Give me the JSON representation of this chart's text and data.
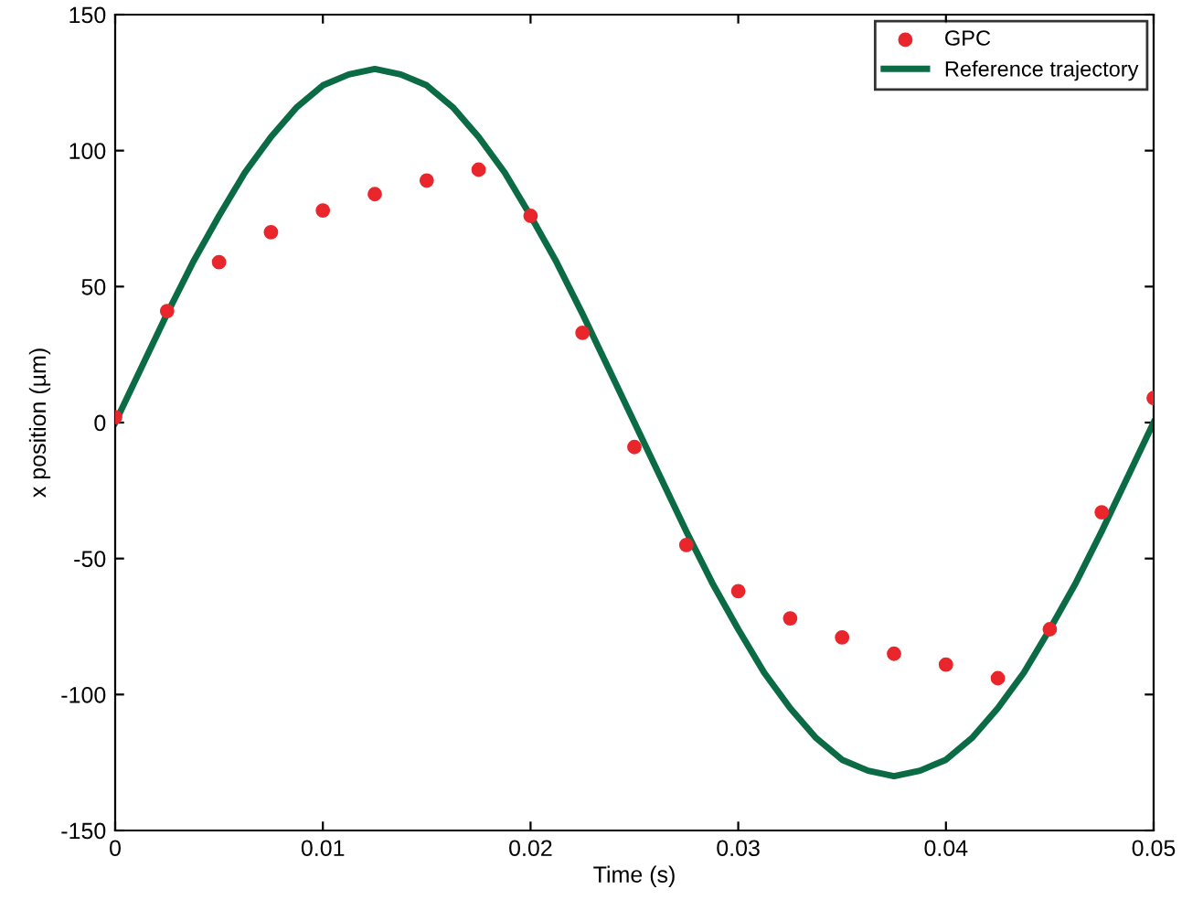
{
  "chart_data": {
    "type": "line",
    "xlabel": "Time (s)",
    "ylabel": "x position (µm)",
    "xlim": [
      0,
      0.05
    ],
    "ylim": [
      -150,
      150
    ],
    "xticks": [
      0,
      0.01,
      0.02,
      0.03,
      0.04,
      0.05
    ],
    "yticks": [
      -150,
      -100,
      -50,
      0,
      50,
      100,
      150
    ],
    "grid": false,
    "legend": "top right",
    "series": [
      {
        "name": "GPC",
        "type": "scatter",
        "marker": "circle",
        "color": "#e8262b",
        "x": [
          0,
          0.0025,
          0.005,
          0.0075,
          0.01,
          0.0125,
          0.015,
          0.0175,
          0.02,
          0.0225,
          0.025,
          0.0275,
          0.03,
          0.0325,
          0.035,
          0.0375,
          0.04,
          0.0425,
          0.045,
          0.0475,
          0.05
        ],
        "values": [
          2,
          41,
          59,
          70,
          78,
          84,
          89,
          93,
          76,
          33,
          -9,
          -45,
          -62,
          -72,
          -79,
          -85,
          -89,
          -94,
          -76,
          -33,
          9
        ]
      },
      {
        "name": "Reference trajectory",
        "marker": "none",
        "line_style": "solid",
        "color": "#0b6b45",
        "x": [
          0,
          0.00125,
          0.0025,
          0.00375,
          0.005,
          0.00625,
          0.0075,
          0.00875,
          0.01,
          0.01125,
          0.0125,
          0.01375,
          0.015,
          0.01625,
          0.0175,
          0.01875,
          0.02,
          0.02125,
          0.0225,
          0.02375,
          0.025,
          0.02625,
          0.0275,
          0.02875,
          0.03,
          0.03125,
          0.0325,
          0.03375,
          0.035,
          0.03625,
          0.0375,
          0.03875,
          0.04,
          0.04125,
          0.0425,
          0.04375,
          0.045,
          0.04625,
          0.0475,
          0.04875,
          0.05
        ],
        "values": [
          0,
          20,
          40,
          59,
          76,
          92,
          105,
          116,
          124,
          128,
          130,
          128,
          124,
          116,
          105,
          92,
          76,
          59,
          40,
          20,
          0,
          -20,
          -40,
          -59,
          -76,
          -92,
          -105,
          -116,
          -124,
          -128,
          -130,
          -128,
          -124,
          -116,
          -105,
          -92,
          -76,
          -59,
          -40,
          -20,
          0
        ]
      }
    ]
  }
}
